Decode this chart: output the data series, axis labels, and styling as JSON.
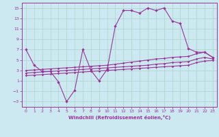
{
  "xlabel": "Windchill (Refroidissement éolien,°C)",
  "background_color": "#cce8f0",
  "grid_color": "#aad4cc",
  "line_color": "#993399",
  "xlim": [
    -0.5,
    23.5
  ],
  "ylim": [
    -4,
    16
  ],
  "yticks": [
    -3,
    -1,
    1,
    3,
    5,
    7,
    9,
    11,
    13,
    15
  ],
  "xticks": [
    0,
    1,
    2,
    3,
    4,
    5,
    6,
    7,
    8,
    9,
    10,
    11,
    12,
    13,
    14,
    15,
    16,
    17,
    18,
    19,
    20,
    21,
    22,
    23
  ],
  "series1_x": [
    0,
    1,
    2,
    3,
    4,
    5,
    6,
    7,
    8,
    9,
    10,
    11,
    12,
    13,
    14,
    15,
    16,
    17,
    18,
    19,
    20,
    21,
    22,
    23
  ],
  "series1_y": [
    7,
    4,
    2.8,
    2.8,
    0.8,
    -3,
    -0.8,
    7,
    3,
    1,
    3.2,
    11.5,
    14.5,
    14.5,
    14,
    15,
    14.5,
    15,
    12.5,
    12,
    7.2,
    6.5,
    6.5,
    5.5
  ],
  "series2_x": [
    0,
    1,
    2,
    3,
    4,
    5,
    6,
    7,
    8,
    9,
    10,
    11,
    12,
    13,
    14,
    15,
    16,
    17,
    18,
    19,
    20,
    21,
    22,
    23
  ],
  "series2_y": [
    3.0,
    3.1,
    3.2,
    3.3,
    3.4,
    3.5,
    3.6,
    3.7,
    3.8,
    3.9,
    4.0,
    4.2,
    4.4,
    4.6,
    4.8,
    5.0,
    5.2,
    5.3,
    5.5,
    5.6,
    5.7,
    6.2,
    6.5,
    5.5
  ],
  "series3_x": [
    0,
    1,
    2,
    3,
    4,
    5,
    6,
    7,
    8,
    9,
    10,
    11,
    12,
    13,
    14,
    15,
    16,
    17,
    18,
    19,
    20,
    21,
    22,
    23
  ],
  "series3_y": [
    2.5,
    2.6,
    2.7,
    2.8,
    2.9,
    3.0,
    3.1,
    3.2,
    3.3,
    3.4,
    3.5,
    3.6,
    3.7,
    3.8,
    3.9,
    4.0,
    4.2,
    4.3,
    4.5,
    4.6,
    4.7,
    5.2,
    5.5,
    5.2
  ],
  "series4_x": [
    0,
    1,
    2,
    3,
    4,
    5,
    6,
    7,
    8,
    9,
    10,
    11,
    12,
    13,
    14,
    15,
    16,
    17,
    18,
    19,
    20,
    21,
    22,
    23
  ],
  "series4_y": [
    2.0,
    2.1,
    2.2,
    2.3,
    2.4,
    2.5,
    2.6,
    2.7,
    2.8,
    2.9,
    3.0,
    3.1,
    3.2,
    3.3,
    3.4,
    3.5,
    3.6,
    3.7,
    3.8,
    3.9,
    4.0,
    4.5,
    4.8,
    4.9
  ]
}
